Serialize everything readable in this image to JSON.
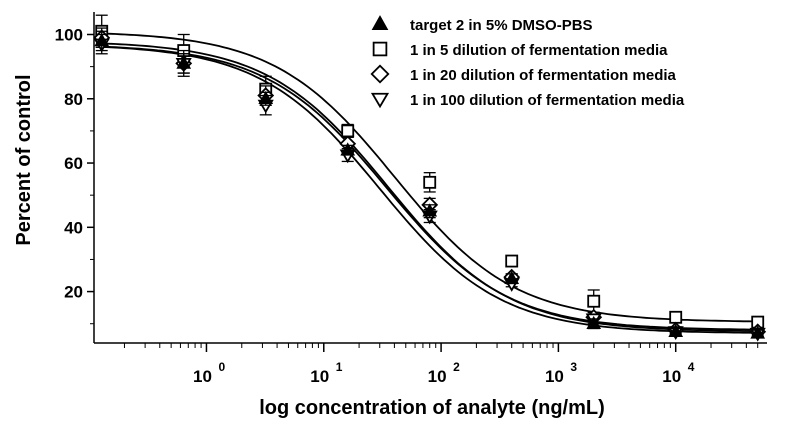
{
  "chart_data": {
    "type": "scatter",
    "title": "",
    "xlabel": "log concentration of analyte (ng/mL)",
    "ylabel": "Percent of control",
    "x_scale": "log",
    "xlim": [
      0.11,
      60000
    ],
    "ylim": [
      4,
      107
    ],
    "y_ticks": [
      20,
      40,
      60,
      80,
      100
    ],
    "y_tick_labels": [
      "20",
      "40",
      "60",
      "80",
      "100"
    ],
    "x_ticks": [
      1,
      10,
      100,
      1000,
      10000
    ],
    "x_tick_labels": [
      {
        "base": "10",
        "exp": "0"
      },
      {
        "base": "10",
        "exp": "1"
      },
      {
        "base": "10",
        "exp": "2"
      },
      {
        "base": "10",
        "exp": "3"
      },
      {
        "base": "10",
        "exp": "4"
      }
    ],
    "grid": false,
    "legend_position": "top-right",
    "x": [
      0.128,
      0.64,
      3.2,
      16,
      80,
      400,
      2000,
      10000,
      50000
    ],
    "series": [
      {
        "name": "target 2 in 5% DMSO-PBS",
        "marker": "triangle-up-filled",
        "values": [
          98,
          91,
          80,
          64,
          45,
          24,
          10,
          7.5,
          7
        ],
        "errors": [
          3,
          3,
          2,
          1.5,
          2,
          1.5,
          1.5,
          1,
          1
        ],
        "fit": {
          "top": 98,
          "bottom": 7.5,
          "ic50": 35,
          "hill": 0.85
        }
      },
      {
        "name": "1 in 5 dilution of fermentation media",
        "marker": "square-open",
        "values": [
          101,
          95,
          83,
          70,
          54,
          29.5,
          17,
          12,
          10.5
        ],
        "errors": [
          5,
          5,
          4,
          2,
          3,
          1.5,
          3.5,
          1.5,
          1
        ],
        "fit": {
          "top": 101,
          "bottom": 10.5,
          "ic50": 40,
          "hill": 0.85
        }
      },
      {
        "name": "1 in 20 dilution of fermentation media",
        "marker": "diamond-open",
        "values": [
          99,
          91,
          81,
          66,
          47,
          24.5,
          12,
          8,
          7.5
        ],
        "errors": [
          3,
          4,
          3,
          2,
          2,
          1,
          1.5,
          1,
          1
        ],
        "fit": {
          "top": 97,
          "bottom": 8,
          "ic50": 34,
          "hill": 0.85
        }
      },
      {
        "name": "1 in 100 dilution of fermentation media",
        "marker": "triangle-down-open",
        "values": [
          97,
          91,
          78,
          62.5,
          43.5,
          22.5,
          11.5,
          7.5,
          7
        ],
        "errors": [
          3,
          3,
          3,
          2,
          2,
          1,
          1.5,
          1,
          1
        ],
        "fit": {
          "top": 97,
          "bottom": 7,
          "ic50": 30,
          "hill": 0.85
        }
      }
    ]
  }
}
